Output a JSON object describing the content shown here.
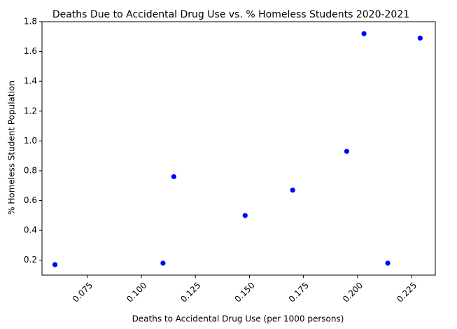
{
  "chart_data": {
    "type": "scatter",
    "title": "Deaths Due to Accidental Drug Use vs. % Homeless Students 2020-2021",
    "xlabel": "Deaths to Accidental Drug Use (per 1000 persons)",
    "ylabel": "% Homeless Student Population",
    "xlim": [
      0.054,
      0.236
    ],
    "ylim": [
      0.1,
      1.8
    ],
    "xticks": [
      0.075,
      0.1,
      0.125,
      0.15,
      0.175,
      0.2,
      0.225
    ],
    "xtick_labels": [
      "0.075",
      "0.100",
      "0.125",
      "0.150",
      "0.175",
      "0.200",
      "0.225"
    ],
    "yticks": [
      0.2,
      0.4,
      0.6,
      0.8,
      1.0,
      1.2,
      1.4,
      1.6,
      1.8
    ],
    "ytick_labels": [
      "0.2",
      "0.4",
      "0.6",
      "0.8",
      "1.0",
      "1.2",
      "1.4",
      "1.6",
      "1.8"
    ],
    "grid": false,
    "marker_color": "#0000ff",
    "points": [
      {
        "x": 0.06,
        "y": 0.17
      },
      {
        "x": 0.11,
        "y": 0.18
      },
      {
        "x": 0.115,
        "y": 0.76
      },
      {
        "x": 0.148,
        "y": 0.5
      },
      {
        "x": 0.17,
        "y": 0.67
      },
      {
        "x": 0.195,
        "y": 0.93
      },
      {
        "x": 0.203,
        "y": 1.72
      },
      {
        "x": 0.214,
        "y": 0.18
      },
      {
        "x": 0.229,
        "y": 1.69
      }
    ]
  }
}
